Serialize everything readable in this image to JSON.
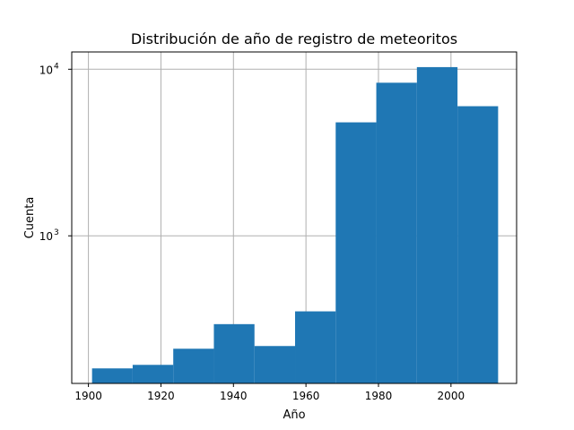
{
  "chart_data": {
    "type": "bar",
    "title": "Distribución de año de registro de meteoritos",
    "xlabel": "Año",
    "ylabel": "Cuenta",
    "x_scale": "linear",
    "y_scale": "log",
    "xlim": [
      1895.4,
      2018.1
    ],
    "ylim": [
      130,
      12700
    ],
    "grid": true,
    "bin_edges": [
      1901,
      1912.2,
      1923.4,
      1934.6,
      1945.8,
      1957.0,
      1968.2,
      1979.4,
      1990.6,
      2001.8,
      2013
    ],
    "values": [
      160,
      168,
      210,
      295,
      218,
      352,
      4800,
      8300,
      10300,
      6000
    ],
    "bar_color": "#1f77b4",
    "x_ticks": [
      {
        "value": 1900,
        "label": "1900"
      },
      {
        "value": 1920,
        "label": "1920"
      },
      {
        "value": 1940,
        "label": "1940"
      },
      {
        "value": 1960,
        "label": "1960"
      },
      {
        "value": 1980,
        "label": "1980"
      },
      {
        "value": 2000,
        "label": "2000"
      }
    ],
    "y_ticks": [
      {
        "value": 1000,
        "base": "10",
        "exp": "3"
      },
      {
        "value": 10000,
        "base": "10",
        "exp": "4"
      }
    ]
  }
}
